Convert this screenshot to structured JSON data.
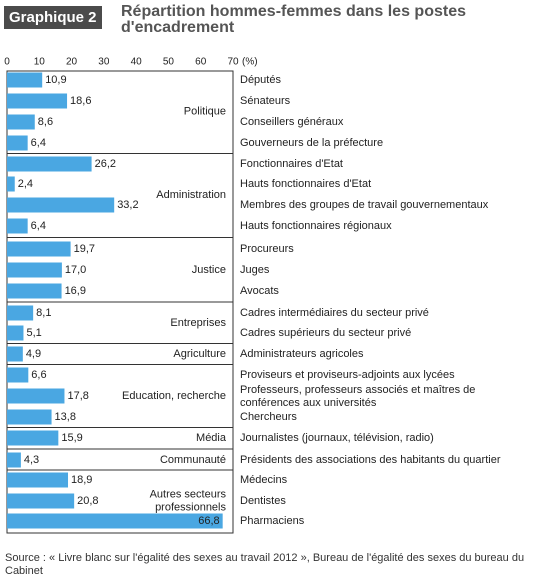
{
  "header": {
    "badge": "Graphique 2",
    "title": "Répartition hommes-femmes dans les postes d'encadrement"
  },
  "source_note": "Source : « Livre blanc sur l'égalité des sexes au travail 2012 », Bureau de l'égalité des sexes du bureau du Cabinet",
  "colors": {
    "bar": "#4aa7e2",
    "axis": "#333333",
    "text": "#222222"
  },
  "chart_data": {
    "type": "bar",
    "orientation": "horizontal",
    "xlim": [
      0,
      70
    ],
    "xticks": [
      0,
      10,
      20,
      30,
      40,
      50,
      60,
      70
    ],
    "xunit": "(%)",
    "value_labels": [
      "10,9",
      "18,6",
      "8,6",
      "6,4",
      "26,2",
      "2,4",
      "33,2",
      "6,4",
      "19,7",
      "17,0",
      "16,9",
      "8,1",
      "5,1",
      "4,9",
      "6,6",
      "17,8",
      "13,8",
      "15,9",
      "4,3",
      "18,9",
      "20,8",
      "66,8"
    ],
    "rows": [
      {
        "label": "Députés",
        "value": 10.9
      },
      {
        "label": "Sénateurs",
        "value": 18.6
      },
      {
        "label": "Conseillers généraux",
        "value": 8.6
      },
      {
        "label": "Gouverneurs de la préfecture",
        "value": 6.4
      },
      {
        "label": "Fonctionnaires d'Etat",
        "value": 26.2
      },
      {
        "label": "Hauts fonctionnaires d'Etat",
        "value": 2.4
      },
      {
        "label": "Membres des groupes de travail gouvernementaux",
        "value": 33.2
      },
      {
        "label": "Hauts fonctionnaires régionaux",
        "value": 6.4
      },
      {
        "label": "Procureurs",
        "value": 19.7
      },
      {
        "label": "Juges",
        "value": 17.0
      },
      {
        "label": "Avocats",
        "value": 16.9
      },
      {
        "label": "Cadres intermédiaires du secteur privé",
        "value": 8.1
      },
      {
        "label": "Cadres supérieurs du secteur privé",
        "value": 5.1
      },
      {
        "label": "Administrateurs agricoles",
        "value": 4.9
      },
      {
        "label": "Proviseurs et proviseurs-adjoints aux lycées",
        "value": 6.6
      },
      {
        "label": "Professeurs, professeurs associés et maîtres de conférences aux universités",
        "value": 17.8
      },
      {
        "label": "Chercheurs",
        "value": 13.8
      },
      {
        "label": "Journalistes (journaux, télévision, radio)",
        "value": 15.9
      },
      {
        "label": "Présidents des associations des habitants du quartier",
        "value": 4.3
      },
      {
        "label": "Médecins",
        "value": 18.9
      },
      {
        "label": "Dentistes",
        "value": 20.8
      },
      {
        "label": "Pharmaciens",
        "value": 66.8
      }
    ],
    "groups": [
      {
        "name": "Politique",
        "start": 0,
        "end": 3
      },
      {
        "name": "Administration",
        "start": 4,
        "end": 7
      },
      {
        "name": "Justice",
        "start": 8,
        "end": 10
      },
      {
        "name": "Entreprises",
        "start": 11,
        "end": 12
      },
      {
        "name": "Agriculture",
        "start": 13,
        "end": 13
      },
      {
        "name": "Education, recherche",
        "start": 14,
        "end": 16
      },
      {
        "name": "Média",
        "start": 17,
        "end": 17
      },
      {
        "name": "Communauté",
        "start": 18,
        "end": 18
      },
      {
        "name": "Autres secteurs professionnels",
        "start": 19,
        "end": 21
      }
    ]
  }
}
